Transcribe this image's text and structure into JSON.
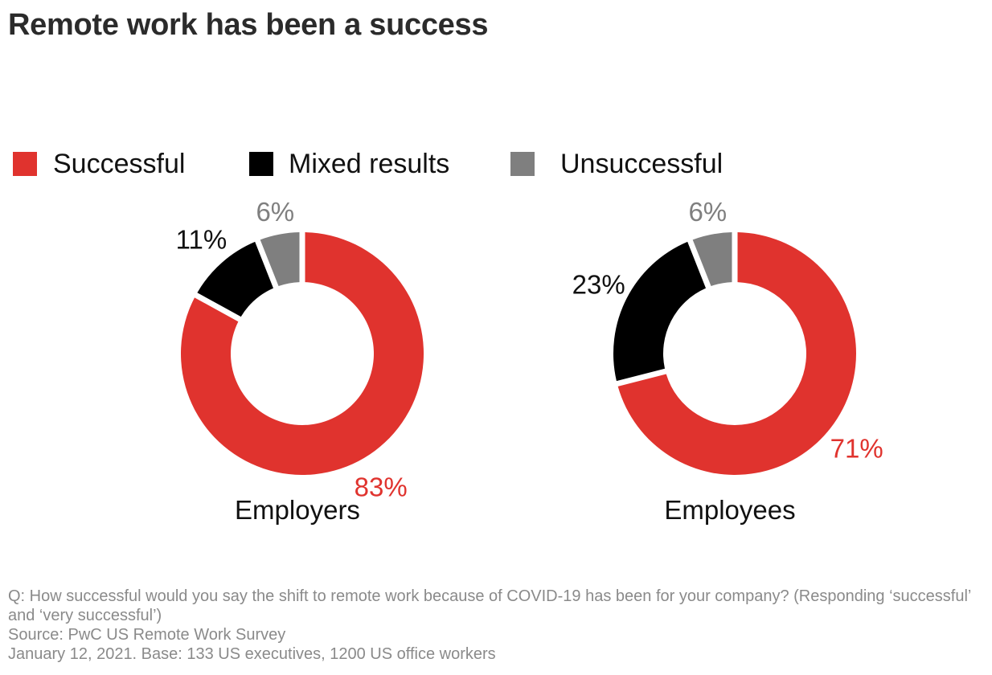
{
  "title": "Remote work has been a success",
  "colors": {
    "successful": "#e0332e",
    "mixed": "#000000",
    "unsuccessful": "#7f7f7f"
  },
  "chart_data": {
    "type": "pie",
    "variant": "donut",
    "legend_position": "top-left",
    "legend": [
      {
        "key": "successful",
        "label": "Successful"
      },
      {
        "key": "mixed",
        "label": "Mixed results"
      },
      {
        "key": "unsuccessful",
        "label": "Unsuccessful"
      }
    ],
    "charts": [
      {
        "group": "Employers",
        "slices": [
          {
            "key": "successful",
            "value": 83,
            "label": "83%"
          },
          {
            "key": "mixed",
            "value": 11,
            "label": "11%"
          },
          {
            "key": "unsuccessful",
            "value": 6,
            "label": "6%"
          }
        ]
      },
      {
        "group": "Employees",
        "slices": [
          {
            "key": "successful",
            "value": 71,
            "label": "71%"
          },
          {
            "key": "mixed",
            "value": 23,
            "label": "23%"
          },
          {
            "key": "unsuccessful",
            "value": 6,
            "label": "6%"
          }
        ]
      }
    ]
  },
  "footnote": {
    "question": "Q: How successful would you say the shift to remote work because of COVID-19 has been for your company? (Responding ‘successful’ and ‘very successful’)",
    "source": "Source: PwC US Remote Work Survey",
    "base": "January 12, 2021. Base: 133 US executives, 1200 US office workers"
  }
}
